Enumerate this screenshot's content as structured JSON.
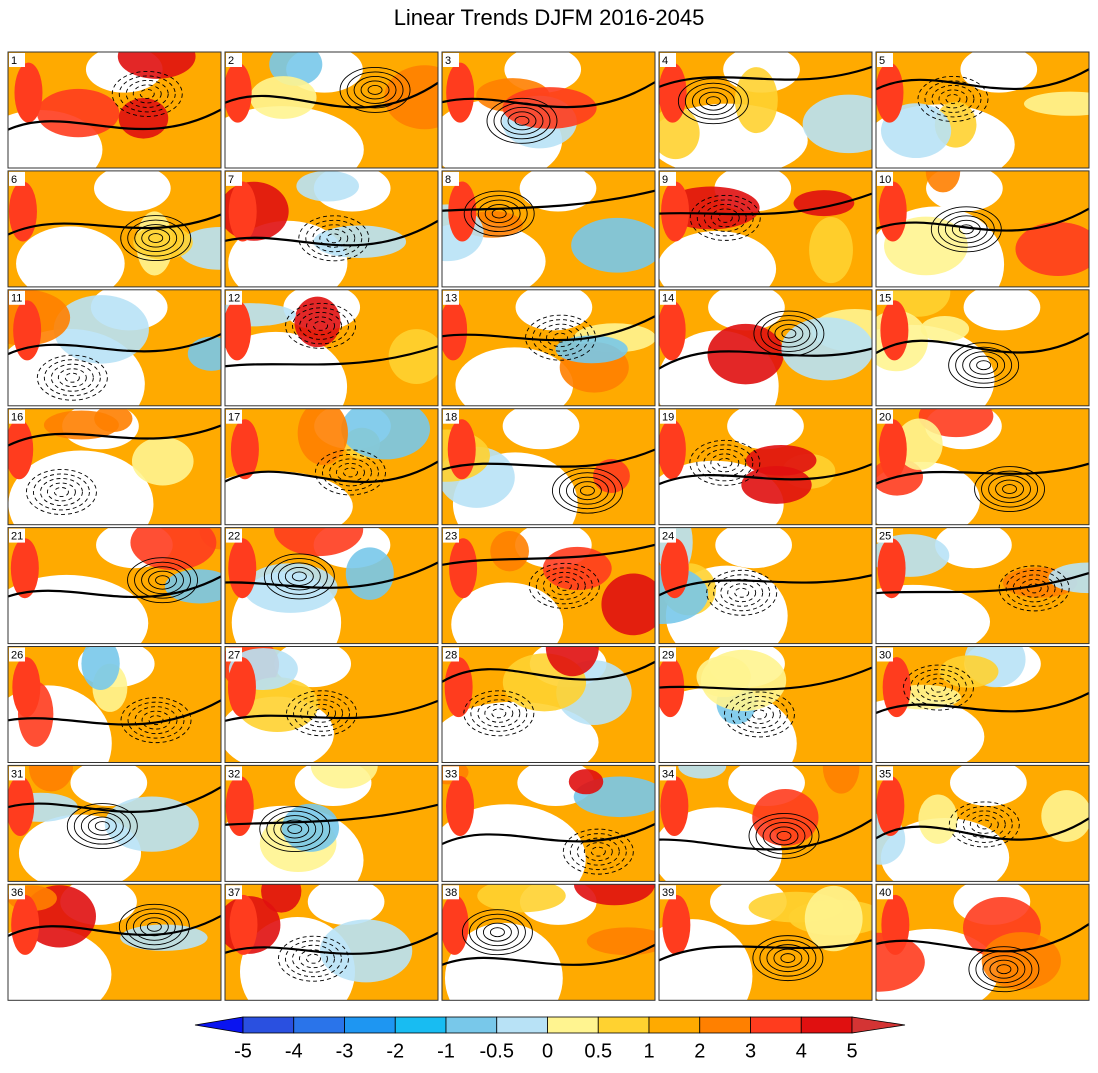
{
  "title": "Linear Trends DJFM 2016-2045",
  "panels": [
    "1",
    "2",
    "3",
    "4",
    "5",
    "6",
    "7",
    "8",
    "9",
    "10",
    "11",
    "12",
    "13",
    "14",
    "15",
    "16",
    "17",
    "18",
    "19",
    "20",
    "21",
    "22",
    "23",
    "24",
    "25",
    "26",
    "27",
    "28",
    "29",
    "30",
    "31",
    "32",
    "33",
    "34",
    "35",
    "36",
    "37",
    "38",
    "39",
    "40"
  ],
  "colorbar": {
    "ticks": [
      -5,
      -4,
      -3,
      -2,
      -1,
      -0.5,
      0,
      0.5,
      1,
      2,
      3,
      4,
      5
    ],
    "colors": [
      "#0a14f0",
      "#2a50e0",
      "#2a74ea",
      "#1e96f2",
      "#18bcf2",
      "#78c8ea",
      "#b8e2f6",
      "#fff490",
      "#ffd230",
      "#ffaa00",
      "#ff8000",
      "#ff3c1e",
      "#e01010",
      "#d43434"
    ]
  }
}
